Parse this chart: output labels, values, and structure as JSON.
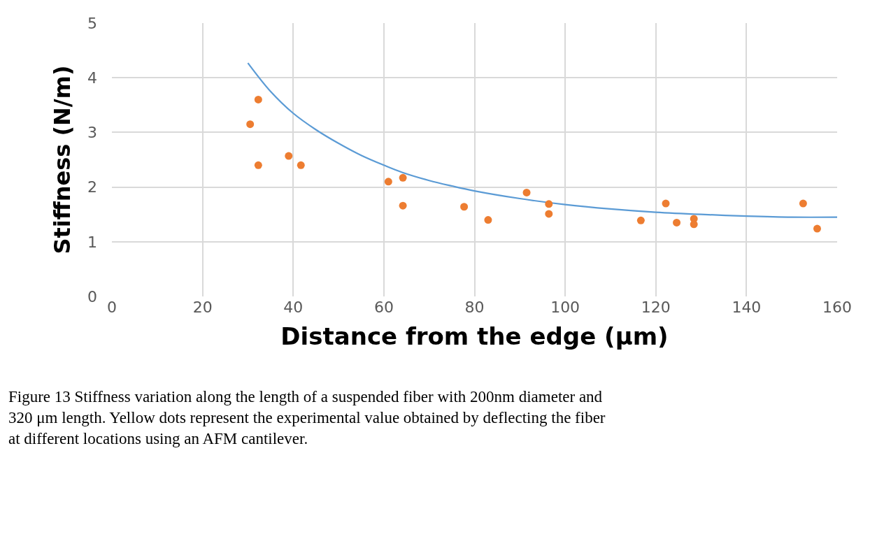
{
  "chart_data": {
    "type": "scatter",
    "xlabel": "Distance from the edge (μm)",
    "ylabel": "Stiffness (N/m)",
    "xlim": [
      0,
      160
    ],
    "xticks": [
      0,
      20,
      40,
      60,
      80,
      100,
      120,
      140,
      160
    ],
    "ylim": [
      0,
      5
    ],
    "yticks": [
      0,
      1,
      2,
      3,
      4,
      5
    ],
    "grid": true,
    "series": [
      {
        "type": "line",
        "color": "#5b9bd5",
        "marker": "none",
        "x": [
          30,
          35,
          40,
          45,
          50,
          55,
          60,
          64,
          70,
          75,
          80,
          90,
          100,
          110,
          120,
          130,
          140,
          150,
          160
        ],
        "values": [
          4.27,
          3.75,
          3.35,
          3.05,
          2.8,
          2.58,
          2.4,
          2.27,
          2.12,
          2.02,
          1.93,
          1.79,
          1.68,
          1.6,
          1.54,
          1.5,
          1.47,
          1.45,
          1.45
        ]
      },
      {
        "color": "#ed7d31",
        "marker": "circle",
        "x": [
          30.5,
          32.3,
          32.3,
          39,
          41.7,
          61,
          64.2,
          64.2,
          77.7,
          83,
          91.5,
          96.4,
          96.4,
          116.7,
          122.2,
          124.6,
          128.4,
          128.4,
          152.5,
          155.6
        ],
        "values": [
          3.15,
          3.6,
          2.4,
          2.57,
          2.4,
          2.1,
          2.17,
          1.66,
          1.64,
          1.4,
          1.9,
          1.69,
          1.51,
          1.39,
          1.7,
          1.35,
          1.42,
          1.32,
          1.7,
          1.24
        ]
      }
    ],
    "annotations": [
      "Figure 13 Stiffness variation along the length of a suspended fiber with 200nm diameter and 320 μm length. Yellow dots represent the experimental value obtained by deflecting the fiber at different locations using an AFM cantilever."
    ]
  }
}
